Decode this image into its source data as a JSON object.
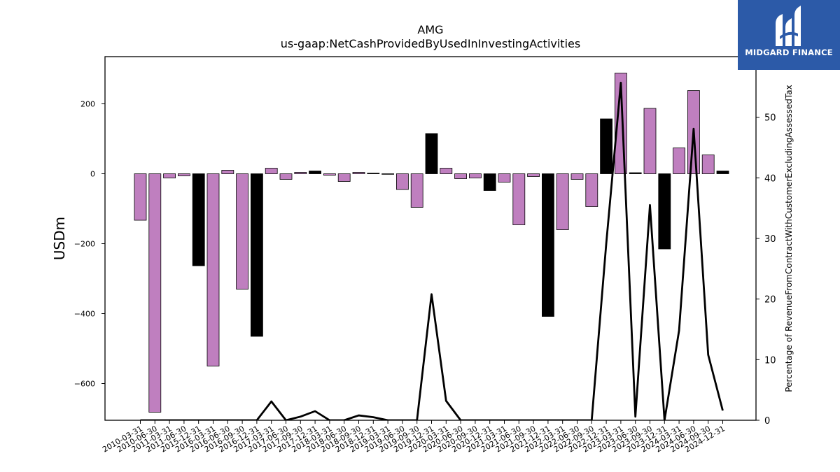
{
  "chart_data": {
    "type": "bar",
    "title": "AMG",
    "subtitle": "us-gaap:NetCashProvidedByUsedInInvestingActivities",
    "ylabel": "USDm",
    "y2label": "Percentage of RevenueFromContractWithCustomerExcludingAssessedTax",
    "ylim": [
      -705,
      335
    ],
    "y2lim": [
      0,
      60
    ],
    "yticks": [
      200,
      0,
      -200,
      -400,
      -600
    ],
    "ytick_labels": [
      "200",
      "0",
      "−200",
      "−400",
      "−600"
    ],
    "y2ticks": [
      50,
      40,
      30,
      20,
      10,
      0
    ],
    "categories": [
      "2010-03-31",
      "2010-06-30",
      "2011-03-31",
      "2011-06-30",
      "2015-12-31",
      "2016-03-31",
      "2016-06-30",
      "2016-09-30",
      "2016-12-31",
      "2017-03-31",
      "2017-06-30",
      "2017-09-30",
      "2017-12-31",
      "2018-03-31",
      "2018-06-30",
      "2018-09-30",
      "2018-12-31",
      "2019-03-31",
      "2019-06-30",
      "2019-09-30",
      "2019-12-31",
      "2020-03-31",
      "2020-06-30",
      "2020-09-30",
      "2020-12-31",
      "2021-03-31",
      "2021-06-30",
      "2021-09-30",
      "2021-12-31",
      "2022-03-31",
      "2022-06-30",
      "2022-09-30",
      "2022-12-31",
      "2023-03-31",
      "2023-06-30",
      "2023-09-30",
      "2023-12-31",
      "2024-03-31",
      "2024-06-30",
      "2024-09-30",
      "2024-12-31"
    ],
    "series": [
      {
        "type": "bar",
        "values": [
          -133,
          -682,
          -12,
          -6,
          -263,
          -550,
          10,
          -330,
          -465,
          16,
          -16,
          4,
          8,
          -4,
          -22,
          4,
          2,
          0,
          -45,
          -96,
          115,
          16,
          -14,
          -12,
          -48,
          -24,
          -146,
          -8,
          -408,
          -160,
          -16,
          -94,
          157,
          288,
          3,
          187,
          -215,
          74,
          238,
          54,
          8
        ],
        "colors": [
          "#bf7fbf",
          "#bf7fbf",
          "#bf7fbf",
          "#bf7fbf",
          "#000000",
          "#bf7fbf",
          "#bf7fbf",
          "#bf7fbf",
          "#000000",
          "#bf7fbf",
          "#bf7fbf",
          "#bf7fbf",
          "#000000",
          "#bf7fbf",
          "#bf7fbf",
          "#bf7fbf",
          "#000000",
          "#bf7fbf",
          "#bf7fbf",
          "#bf7fbf",
          "#000000",
          "#bf7fbf",
          "#bf7fbf",
          "#bf7fbf",
          "#000000",
          "#bf7fbf",
          "#bf7fbf",
          "#bf7fbf",
          "#000000",
          "#bf7fbf",
          "#bf7fbf",
          "#bf7fbf",
          "#000000",
          "#bf7fbf",
          "#000000",
          "#bf7fbf",
          "#000000",
          "#bf7fbf",
          "#bf7fbf",
          "#bf7fbf",
          "#000000"
        ]
      },
      {
        "type": "line",
        "axis": "right",
        "color": "#000000",
        "values": [
          0,
          0,
          0,
          0,
          0,
          0,
          0,
          0,
          0,
          3.1,
          0,
          0.6,
          1.5,
          0,
          0,
          0.8,
          0.5,
          0,
          0,
          0,
          20.8,
          3.2,
          0,
          0,
          0,
          0,
          0,
          0,
          0,
          0,
          0,
          0,
          29.2,
          55.7,
          0.6,
          35.5,
          0,
          14.8,
          48.1,
          10.8,
          1.6
        ]
      }
    ],
    "grid": false,
    "legend": "none"
  },
  "logo": {
    "text": "MIDGARD FINANCE",
    "background": "#2c5aa8"
  }
}
